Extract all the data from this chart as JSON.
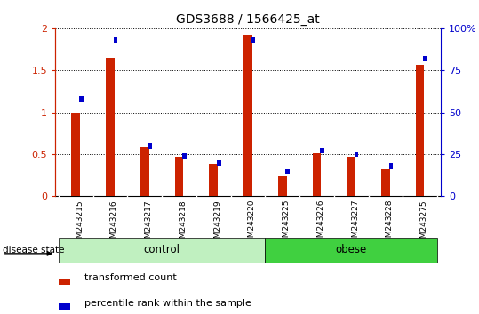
{
  "title": "GDS3688 / 1566425_at",
  "categories": [
    "GSM243215",
    "GSM243216",
    "GSM243217",
    "GSM243218",
    "GSM243219",
    "GSM243220",
    "GSM243225",
    "GSM243226",
    "GSM243227",
    "GSM243228",
    "GSM243275"
  ],
  "red_values": [
    1.0,
    1.65,
    0.58,
    0.47,
    0.38,
    1.92,
    0.25,
    0.52,
    0.47,
    0.32,
    1.57
  ],
  "blue_pct": [
    58,
    93,
    30,
    24,
    20,
    93,
    15,
    27,
    25,
    18,
    82
  ],
  "ylim_left": [
    0,
    2
  ],
  "ylim_right": [
    0,
    100
  ],
  "yticks_left": [
    0,
    0.5,
    1.0,
    1.5,
    2.0
  ],
  "ytick_labels_left": [
    "0",
    "0.5",
    "1",
    "1.5",
    "2"
  ],
  "yticks_right": [
    0,
    25,
    50,
    75,
    100
  ],
  "ytick_labels_right": [
    "0",
    "25",
    "50",
    "75",
    "100%"
  ],
  "legend_red": "transformed count",
  "legend_blue": "percentile rank within the sample",
  "red_color": "#cc2200",
  "blue_color": "#0000cc",
  "bar_bg": "#c8c8c8",
  "control_color": "#c0f0c0",
  "obese_color": "#40d040"
}
